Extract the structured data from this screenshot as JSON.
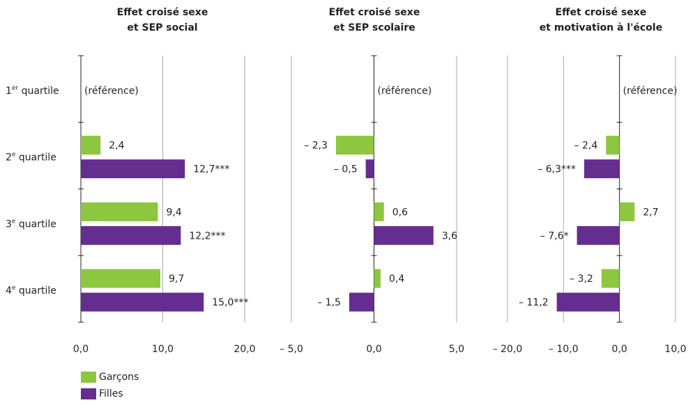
{
  "chart_data": [
    {
      "type": "bar",
      "orientation": "horizontal",
      "title_lines": [
        "Effet croisé sexe",
        "et SEP social"
      ],
      "categories": [
        "1er quartile",
        "2e quartile",
        "3e quartile",
        "4e quartile"
      ],
      "xlim": [
        0,
        20
      ],
      "ticks": [
        0,
        10,
        20
      ],
      "tick_labels": [
        "0,0",
        "10,0",
        "20,0"
      ],
      "reference_label": "(référence)",
      "series": [
        {
          "name": "Garçons",
          "values": [
            null,
            2.4,
            9.4,
            9.7
          ],
          "labels": [
            "",
            "2,4",
            "9,4",
            "9,7"
          ]
        },
        {
          "name": "Filles",
          "values": [
            null,
            12.7,
            12.2,
            15.0
          ],
          "labels": [
            "",
            "12,7***",
            "12,2***",
            "15,0***"
          ]
        }
      ]
    },
    {
      "type": "bar",
      "orientation": "horizontal",
      "title_lines": [
        "Effet croisé sexe",
        "et SEP scolaire"
      ],
      "categories": [
        "1er quartile",
        "2e quartile",
        "3e quartile",
        "4e quartile"
      ],
      "xlim": [
        -5,
        5
      ],
      "ticks": [
        -5,
        0,
        5
      ],
      "tick_labels": [
        "– 5,0",
        "0,0",
        "5,0"
      ],
      "reference_label": "(référence)",
      "series": [
        {
          "name": "Garçons",
          "values": [
            null,
            -2.3,
            0.6,
            0.4
          ],
          "labels": [
            "",
            "– 2,3",
            "0,6",
            "0,4"
          ]
        },
        {
          "name": "Filles",
          "values": [
            null,
            -0.5,
            3.6,
            -1.5
          ],
          "labels": [
            "",
            "– 0,5",
            "3,6",
            "– 1,5"
          ]
        }
      ]
    },
    {
      "type": "bar",
      "orientation": "horizontal",
      "title_lines": [
        "Effet croisé sexe",
        "et motivation à l'école"
      ],
      "categories": [
        "1er quartile",
        "2e quartile",
        "3e quartile",
        "4e quartile"
      ],
      "xlim": [
        -20,
        10
      ],
      "ticks": [
        -20,
        -10,
        0,
        10
      ],
      "tick_labels": [
        "– 20,0",
        "– 10,0",
        "0,0",
        "10,0"
      ],
      "reference_label": "(référence)",
      "series": [
        {
          "name": "Garçons",
          "values": [
            null,
            -2.4,
            2.7,
            -3.2
          ],
          "labels": [
            "",
            "– 2,4",
            "2,7",
            "– 3,2"
          ]
        },
        {
          "name": "Filles",
          "values": [
            null,
            -6.3,
            -7.6,
            -11.2
          ],
          "labels": [
            "",
            "– 6,3***",
            "– 7,6*",
            "– 11,2"
          ]
        }
      ]
    }
  ],
  "category_labels": [
    {
      "main": "1",
      "sup": "er",
      "rest": " quartile"
    },
    {
      "main": "2",
      "sup": "e",
      "rest": " quartile"
    },
    {
      "main": "3",
      "sup": "e",
      "rest": " quartile"
    },
    {
      "main": "4",
      "sup": "e",
      "rest": " quartile"
    }
  ],
  "legend": [
    {
      "label": "Garçons",
      "color": "#8dc63f"
    },
    {
      "label": "Filles",
      "color": "#662d91"
    }
  ],
  "colors": {
    "garcons": "#8dc63f",
    "filles": "#662d91",
    "axis": "#231f20",
    "grid": "#a7a9ac"
  },
  "legend_position": "bottom-left",
  "grid": true
}
